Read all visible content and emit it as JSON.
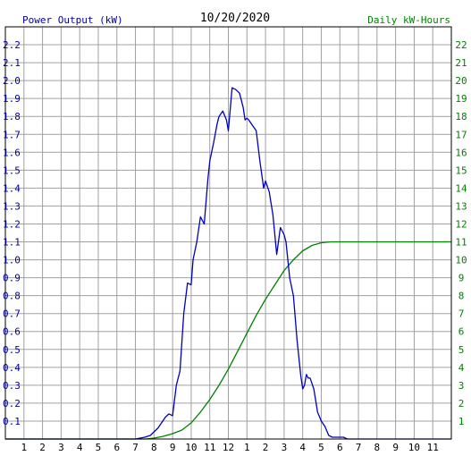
{
  "chart_data": {
    "type": "line",
    "title": "10/20/2020",
    "left_axis_label": "Power Output (kW)",
    "right_axis_label": "Daily kW-Hours",
    "x_ticks": [
      "1",
      "2",
      "3",
      "4",
      "5",
      "6",
      "7",
      "8",
      "9",
      "10",
      "11",
      "12",
      "1",
      "2",
      "3",
      "4",
      "5",
      "6",
      "7",
      "8",
      "9",
      "10",
      "11"
    ],
    "x_range_hours": [
      0,
      24
    ],
    "y_left_range": [
      0,
      2.3
    ],
    "y_left_ticks": [
      "0.1",
      "0.2",
      "0.3",
      "0.4",
      "0.5",
      "0.6",
      "0.7",
      "0.8",
      "0.9",
      "1.0",
      "1.1",
      "1.2",
      "1.3",
      "1.4",
      "1.5",
      "1.6",
      "1.7",
      "1.8",
      "1.9",
      "2.0",
      "2.1",
      "2.2"
    ],
    "y_right_range": [
      0,
      23
    ],
    "y_right_ticks": [
      "1",
      "2",
      "3",
      "4",
      "5",
      "6",
      "7",
      "8",
      "9",
      "10",
      "11",
      "12",
      "13",
      "14",
      "15",
      "16",
      "17",
      "18",
      "19",
      "20",
      "21",
      "22"
    ],
    "grid": true,
    "colors": {
      "power": "#0000c0",
      "energy": "#008000",
      "left_text": "#0000a0",
      "right_text": "#008000",
      "grid": "#a0a0a0",
      "frame": "#000000"
    },
    "series": [
      {
        "key": "power",
        "axis": "left",
        "x": [
          0,
          7.0,
          7.5,
          7.8,
          8.0,
          8.2,
          8.4,
          8.6,
          8.8,
          9.0,
          9.2,
          9.4,
          9.6,
          9.8,
          10.0,
          10.1,
          10.3,
          10.5,
          10.7,
          10.9,
          11.0,
          11.2,
          11.4,
          11.5,
          11.7,
          11.9,
          12.0,
          12.2,
          12.4,
          12.6,
          12.8,
          12.9,
          13.0,
          13.1,
          13.3,
          13.5,
          13.7,
          13.9,
          14.0,
          14.2,
          14.4,
          14.6,
          14.8,
          15.0,
          15.1,
          15.3,
          15.5,
          15.7,
          15.9,
          16.0,
          16.1,
          16.2,
          16.3,
          16.4,
          16.6,
          16.8,
          17.0,
          17.2,
          17.4,
          17.6,
          17.8,
          18.0,
          18.2,
          18.4,
          18.6,
          18.8,
          19.0,
          19.5,
          20.0,
          24.0
        ],
        "y": [
          0,
          0,
          0.01,
          0.02,
          0.04,
          0.06,
          0.09,
          0.12,
          0.14,
          0.13,
          0.3,
          0.38,
          0.7,
          0.87,
          0.86,
          1.0,
          1.1,
          1.24,
          1.2,
          1.45,
          1.55,
          1.65,
          1.76,
          1.8,
          1.83,
          1.78,
          1.72,
          1.96,
          1.95,
          1.93,
          1.85,
          1.78,
          1.79,
          1.78,
          1.75,
          1.72,
          1.55,
          1.4,
          1.44,
          1.38,
          1.25,
          1.03,
          1.18,
          1.14,
          1.1,
          0.9,
          0.8,
          0.55,
          0.35,
          0.28,
          0.3,
          0.36,
          0.34,
          0.34,
          0.28,
          0.15,
          0.1,
          0.07,
          0.02,
          0.01,
          0.01,
          0.01,
          0.01,
          0.0,
          0.0,
          0.0,
          0.0,
          0.0,
          0.0,
          0.0
        ]
      },
      {
        "key": "energy",
        "axis": "right",
        "x": [
          0,
          7.5,
          8.0,
          8.5,
          9.0,
          9.5,
          10.0,
          10.5,
          11.0,
          11.5,
          12.0,
          12.5,
          13.0,
          13.5,
          14.0,
          14.5,
          15.0,
          15.5,
          16.0,
          16.5,
          17.0,
          17.5,
          18.0,
          18.5,
          19.0,
          24.0
        ],
        "y": [
          0,
          0,
          0.05,
          0.15,
          0.3,
          0.5,
          0.9,
          1.5,
          2.2,
          3.0,
          3.9,
          4.9,
          5.9,
          6.9,
          7.8,
          8.6,
          9.4,
          10.0,
          10.5,
          10.8,
          10.95,
          11.0,
          11.0,
          11.0,
          11.0,
          11.0
        ]
      }
    ]
  }
}
